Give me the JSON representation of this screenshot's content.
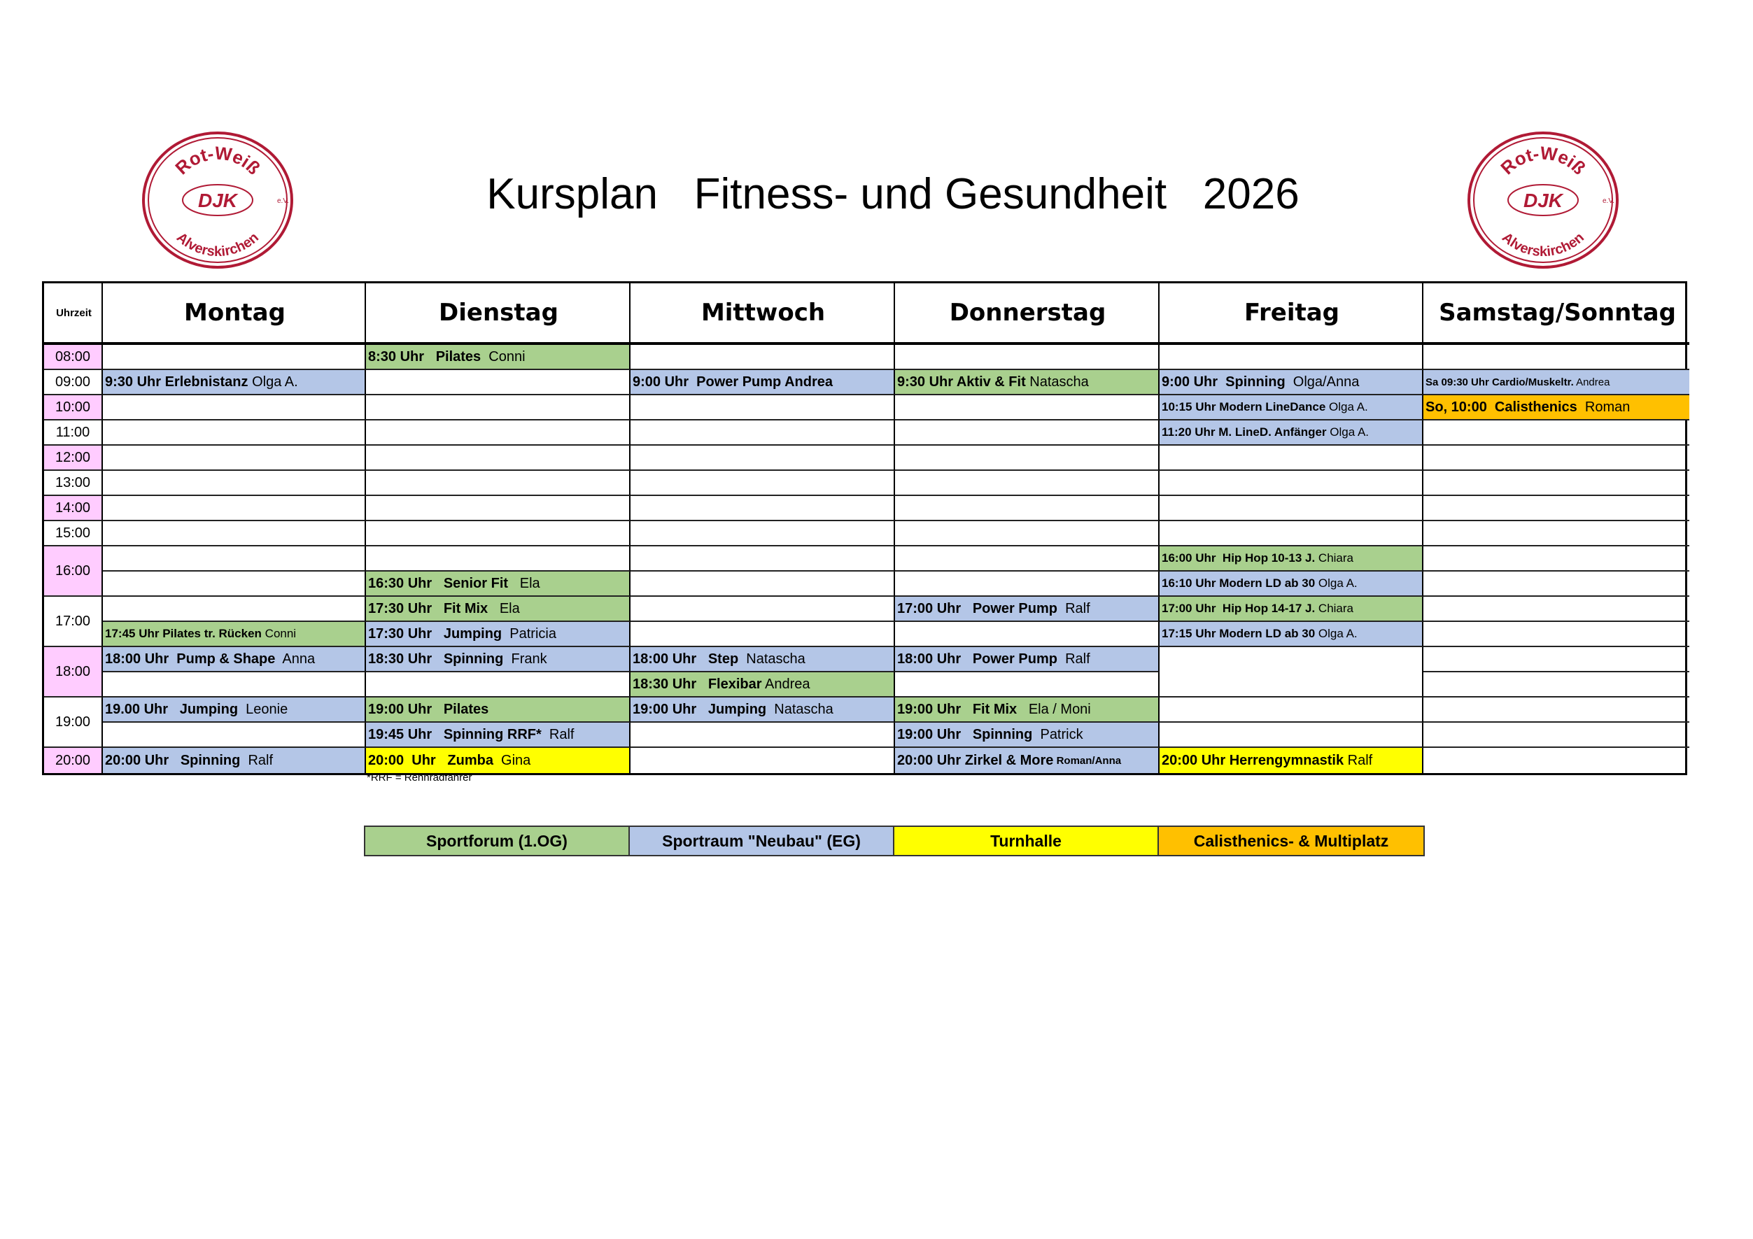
{
  "title": "Kursplan   Fitness- und Gesundheit   2026",
  "logo": {
    "top_text": "Rot-Weiß",
    "center_text": "DJK",
    "bottom_text": "Alverskirchen",
    "suffix": "e.V.",
    "color": "#b01a35"
  },
  "colors": {
    "green": "#a9d08e",
    "blue": "#b4c6e7",
    "yellow": "#ffff00",
    "orange": "#ffc000",
    "pink": "#ffccff"
  },
  "header": {
    "time_label": "Uhrzeit",
    "days": [
      "Montag",
      "Dienstag",
      "Mittwoch",
      "Donnerstag",
      "Freitag",
      "Samstag/Sonntag"
    ]
  },
  "times": [
    {
      "label": "08:00",
      "span": 1,
      "color": "pink"
    },
    {
      "label": "09:00",
      "span": 1,
      "color": "white"
    },
    {
      "label": "10:00",
      "span": 1,
      "color": "pink"
    },
    {
      "label": "11:00",
      "span": 1,
      "color": "white"
    },
    {
      "label": "12:00",
      "span": 1,
      "color": "pink"
    },
    {
      "label": "13:00",
      "span": 1,
      "color": "white"
    },
    {
      "label": "14:00",
      "span": 1,
      "color": "pink"
    },
    {
      "label": "15:00",
      "span": 1,
      "color": "white"
    },
    {
      "label": "16:00",
      "span": 2,
      "color": "pink"
    },
    {
      "label": "17:00",
      "span": 2,
      "color": "white"
    },
    {
      "label": "18:00",
      "span": 2,
      "color": "pink"
    },
    {
      "label": "19:00",
      "span": 2,
      "color": "white"
    },
    {
      "label": "20:00",
      "span": 1,
      "color": "pink"
    }
  ],
  "rows": [
    [
      null,
      {
        "bold": "8:30 Uhr   Pilates",
        "normal": "  Conni",
        "color": "green"
      },
      null,
      null,
      null,
      null
    ],
    [
      {
        "bold": "9:30 Uhr Erlebnistanz",
        "normal": " Olga A.",
        "color": "blue"
      },
      null,
      {
        "bold": "9:00 Uhr  Power Pump Andrea",
        "normal": "",
        "color": "blue"
      },
      {
        "bold": "9:30 Uhr Aktiv & Fit",
        "normal": " Natascha",
        "color": "green"
      },
      {
        "bold": "9:00 Uhr  Spinning",
        "normal": "  Olga/Anna",
        "color": "blue"
      },
      {
        "bold": "Sa 09:30 Uhr Cardio/Muskeltr.",
        "normal": " Andrea",
        "color": "blue",
        "size": "xs"
      }
    ],
    [
      null,
      null,
      null,
      null,
      {
        "bold": "10:15 Uhr Modern LineDance",
        "normal": " Olga A.",
        "color": "blue",
        "size": "sm"
      },
      {
        "bold": "So, 10:00  Calisthenics",
        "normal": "  Roman",
        "color": "orange"
      }
    ],
    [
      null,
      null,
      null,
      null,
      {
        "bold": "11:20 Uhr M. LineD. Anfänger",
        "normal": " Olga A.",
        "color": "blue",
        "size": "sm"
      },
      null
    ],
    [
      null,
      null,
      null,
      null,
      null,
      null
    ],
    [
      null,
      null,
      null,
      null,
      null,
      null
    ],
    [
      null,
      null,
      null,
      null,
      null,
      null
    ],
    [
      null,
      null,
      null,
      null,
      null,
      null
    ],
    [
      null,
      null,
      null,
      null,
      {
        "bold": "16:00 Uhr  Hip Hop 10-13 J.",
        "normal": " Chiara",
        "color": "green",
        "size": "sm"
      },
      null
    ],
    [
      null,
      {
        "bold": "16:30 Uhr   Senior Fit",
        "normal": "   Ela",
        "color": "green"
      },
      null,
      null,
      {
        "bold": "16:10 Uhr Modern LD ab 30",
        "normal": " Olga A.",
        "color": "blue",
        "size": "sm"
      },
      null
    ],
    [
      null,
      {
        "bold": "17:30 Uhr   Fit Mix",
        "normal": "   Ela",
        "color": "green"
      },
      null,
      {
        "bold": "17:00 Uhr   Power Pump",
        "normal": "  Ralf",
        "color": "blue"
      },
      {
        "bold": "17:00 Uhr  Hip Hop 14-17 J.",
        "normal": " Chiara",
        "color": "green",
        "size": "sm"
      },
      null
    ],
    [
      {
        "bold": "17:45 Uhr Pilates tr. Rücken",
        "normal": " Conni",
        "color": "green",
        "size": "sm"
      },
      {
        "bold": "17:30 Uhr   Jumping",
        "normal": "  Patricia",
        "color": "blue"
      },
      null,
      null,
      {
        "bold": "17:15 Uhr Modern LD ab 30",
        "normal": " Olga A.",
        "color": "blue",
        "size": "sm"
      },
      null
    ],
    [
      {
        "bold": "18:00 Uhr  Pump & Shape",
        "normal": "  Anna",
        "color": "blue"
      },
      {
        "bold": "18:30 Uhr   Spinning",
        "normal": "  Frank",
        "color": "blue"
      },
      {
        "bold": "18:00 Uhr   Step",
        "normal": "  Natascha",
        "color": "blue"
      },
      {
        "bold": "18:00 Uhr   Power Pump",
        "normal": "  Ralf",
        "color": "blue"
      },
      {
        "merged": 2
      },
      null
    ],
    [
      null,
      null,
      {
        "bold": "18:30 Uhr   Flexibar",
        "normal": " Andrea",
        "color": "green"
      },
      null,
      "skip",
      null
    ],
    [
      {
        "bold": "19.00 Uhr   Jumping",
        "normal": "  Leonie",
        "color": "blue"
      },
      {
        "bold": "19:00 Uhr   Pilates",
        "normal": "",
        "color": "green"
      },
      {
        "bold": "19:00 Uhr   Jumping",
        "normal": "  Natascha",
        "color": "blue"
      },
      {
        "bold": "19:00 Uhr   Fit Mix",
        "normal": "   Ela / Moni",
        "color": "green"
      },
      null,
      null
    ],
    [
      null,
      {
        "bold": "19:45 Uhr   Spinning RRF*",
        "normal": "  Ralf",
        "color": "blue"
      },
      null,
      {
        "bold": "19:00 Uhr   Spinning",
        "normal": "  Patrick",
        "color": "blue"
      },
      null,
      null
    ],
    [
      {
        "bold": "20:00 Uhr   Spinning",
        "normal": "  Ralf",
        "color": "blue"
      },
      {
        "bold": "20:00  Uhr   Zumba",
        "normal": "  Gina",
        "color": "yellow"
      },
      null,
      {
        "bold": "20:00 Uhr Zirkel & More",
        "normal": " Roman/Anna",
        "color": "blue",
        "normal_size": "xs"
      },
      {
        "bold": "20:00 Uhr Herrengymnastik",
        "normal": " Ralf",
        "color": "yellow"
      },
      null
    ]
  ],
  "footnote": "*RRF = Rennradfahrer",
  "legend": [
    {
      "label": "Sportforum (1.OG)",
      "color": "green"
    },
    {
      "label": "Sportraum \"Neubau\" (EG)",
      "color": "blue"
    },
    {
      "label": "Turnhalle",
      "color": "yellow"
    },
    {
      "label": "Calisthenics- & Multiplatz",
      "color": "orange"
    }
  ]
}
